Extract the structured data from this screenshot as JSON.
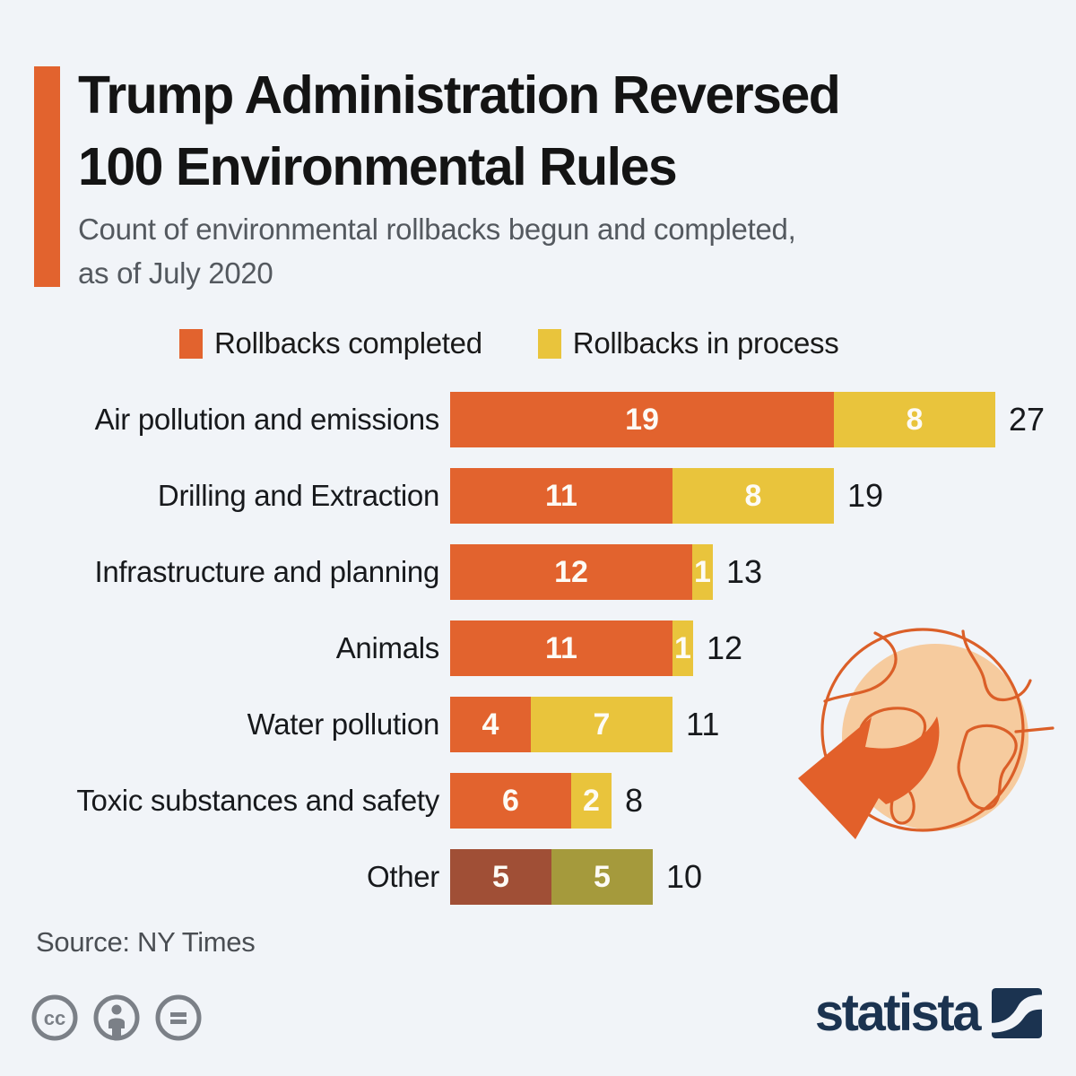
{
  "header": {
    "title_line1": "Trump Administration Reversed",
    "title_line2": "100 Environmental Rules",
    "subtitle_line1": "Count of environmental rollbacks begun and completed,",
    "subtitle_line2": "as of July 2020"
  },
  "chart_data": {
    "type": "bar",
    "orientation": "horizontal",
    "stacked": true,
    "legend_position": "top",
    "categories": [
      "Air pollution and emissions",
      "Drilling and Extraction",
      "Infrastructure and planning",
      "Animals",
      "Water pollution",
      "Toxic substances and safety",
      "Other"
    ],
    "series": [
      {
        "name": "Rollbacks completed",
        "color": "#e2632e",
        "values": [
          19,
          11,
          12,
          11,
          4,
          6,
          5
        ]
      },
      {
        "name": "Rollbacks in process",
        "color": "#e9c43c",
        "values": [
          8,
          8,
          1,
          1,
          7,
          2,
          5
        ]
      }
    ],
    "totals": [
      27,
      19,
      13,
      12,
      11,
      8,
      10
    ],
    "row_color_overrides": {
      "Other": [
        "#a04f36",
        "#a59a3c"
      ]
    },
    "xmax": 27,
    "value_label_style": "white inside segments, black totals outside",
    "grid": false
  },
  "footer": {
    "source": "Source: NY Times",
    "brand": "statista"
  },
  "icons": {
    "cc_icon": "creative-commons",
    "attribution_icon": "person",
    "nd_icon": "equals",
    "globe_icon": "globe-with-rollback-arrow",
    "brand_mark": "statista-swoosh-square"
  },
  "colors": {
    "background": "#f1f4f8",
    "accent": "#e2632e",
    "completed": "#e2632e",
    "in_process": "#e9c43c",
    "other_completed": "#a04f36",
    "other_in_process": "#a59a3c",
    "brand_navy": "#1b3350",
    "icon_gray": "#7b8087",
    "globe_fill": "#f6cb9e",
    "globe_stroke": "#db5f28"
  }
}
